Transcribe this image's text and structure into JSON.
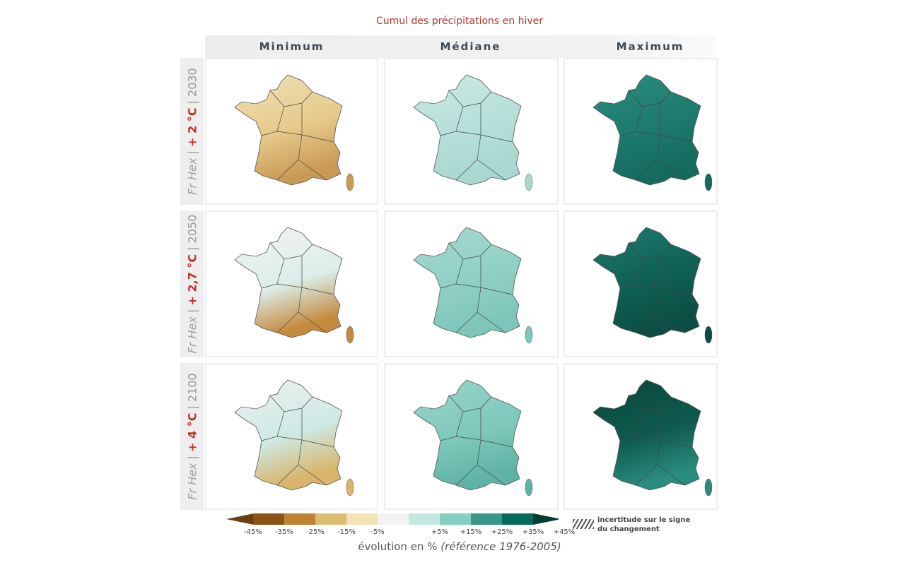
{
  "title": "Cumul des précipitations en hiver",
  "columns": [
    "Minimum",
    "Médiane",
    "Maximum"
  ],
  "rows": [
    {
      "prefix": "Fr Hex",
      "warming": "+ 2 °C",
      "year": "2030"
    },
    {
      "prefix": "Fr Hex",
      "warming": "+ 2,7 °C",
      "year": "2050"
    },
    {
      "prefix": "Fr Hex",
      "warming": "+ 4 °C",
      "year": "2100"
    }
  ],
  "chart_data": {
    "type": "heatmap",
    "title": "Cumul des précipitations en hiver",
    "xlabel": "évolution en %",
    "xlabel_note": "(référence 1976-2005)",
    "panel_colors": [
      [
        [
          "#f0e2b8",
          "#e6c98a",
          "#c99a55"
        ],
        [
          "#cde9e4",
          "#b5dfd8",
          "#a8d8cf"
        ],
        [
          "#2a8c7e",
          "#1d7a6d",
          "#146a5d"
        ]
      ],
      [
        [
          "#f2f2f2",
          "#dceeea",
          "#c48a3e"
        ],
        [
          "#a6d9d0",
          "#8fcfc4",
          "#7ec6ba"
        ],
        [
          "#1d7a6d",
          "#0f5f53",
          "#0c4e44"
        ]
      ],
      [
        [
          "#f0f0f0",
          "#cde9e4",
          "#d9b46a"
        ],
        [
          "#9ad4ca",
          "#7fc8bc",
          "#5fb3a5"
        ],
        [
          "#0a463c",
          "#0f5a4f",
          "#2a8c7e"
        ]
      ]
    ],
    "legend": {
      "colors": [
        "#6b3f0f",
        "#8c5316",
        "#bf8231",
        "#dcbb72",
        "#f2e2b6",
        "#f3f3f3",
        "#c3e8e1",
        "#83cfc2",
        "#37988a",
        "#046b5a",
        "#053d33"
      ],
      "ticks": [
        "-45%",
        "-35%",
        "-25%",
        "-15%",
        "-5%",
        "+5%",
        "+15%",
        "+25%",
        "+35%",
        "+45%"
      ],
      "hatch_label_1": "incertitude sur le signe",
      "hatch_label_2": "du changement"
    }
  }
}
